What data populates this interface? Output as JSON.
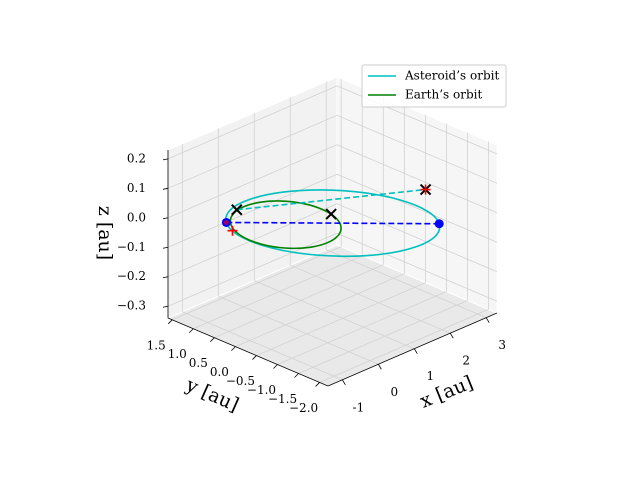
{
  "chart_data": {
    "type": "line3d",
    "xlabel": "x [au]",
    "ylabel": "y [au]",
    "zlabel": "z [au]",
    "xlim": [
      -1.4,
      3.3
    ],
    "ylim": [
      -2.2,
      1.6
    ],
    "zlim": [
      -0.34,
      0.23
    ],
    "xticks": [
      -1,
      0,
      1,
      2,
      3
    ],
    "yticks": [
      {
        "value": 1.5,
        "label": "1.5"
      },
      {
        "value": 1,
        "label": "1.0"
      },
      {
        "value": 0.5,
        "label": "0.5"
      },
      {
        "value": 0,
        "label": "0.0"
      },
      {
        "value": -0.5,
        "label": "−0.5"
      },
      {
        "value": -1,
        "label": "−1.0"
      },
      {
        "value": -1.5,
        "label": "−1.5"
      },
      {
        "value": -2,
        "label": "−2.0"
      }
    ],
    "zticks": [
      {
        "value": 0.2,
        "label": "0.2"
      },
      {
        "value": 0.1,
        "label": "0.1"
      },
      {
        "value": 0,
        "label": "0.0"
      },
      {
        "value": -0.1,
        "label": "−0.1"
      },
      {
        "value": -0.2,
        "label": "−0.2"
      },
      {
        "value": -0.3,
        "label": "−0.3"
      }
    ],
    "grid": true,
    "legend": "upper right",
    "series": [
      {
        "name": "Asteroid’s orbit",
        "color": "#00bfbf",
        "x": [
          2.147,
          2.394,
          2.382,
          2.115,
          1.632,
          1.007,
          0.336,
          -0.28,
          -0.747,
          -0.994,
          -0.982,
          -0.715,
          -0.232,
          0.393,
          1.064,
          1.68
        ],
        "y": [
          -1.812,
          -1.314,
          -0.695,
          -0.05,
          0.524,
          0.94,
          1.131,
          1.074,
          0.772,
          0.274,
          -0.345,
          -0.99,
          -1.564,
          -1.98,
          -2.171,
          -2.114
        ],
        "z": [
          0,
          0,
          0,
          0,
          0,
          0,
          0,
          0,
          0,
          0,
          0,
          0,
          0,
          0,
          0,
          0
        ]
      },
      {
        "name": "Earth’s orbit",
        "color": "#008000",
        "x": [
          1,
          0.924,
          0.707,
          0.383,
          0,
          -0.383,
          -0.707,
          -0.924,
          -1,
          -0.924,
          -0.707,
          -0.383,
          0,
          0.383,
          0.707,
          0.924
        ],
        "y": [
          0,
          0.383,
          0.707,
          0.924,
          1,
          0.924,
          0.707,
          0.383,
          0,
          -0.383,
          -0.707,
          -0.924,
          -1,
          -0.924,
          -0.707,
          -0.383
        ],
        "z": [
          0,
          0,
          0,
          0,
          0,
          0,
          0,
          0,
          0,
          0,
          0,
          0,
          0,
          0,
          0,
          0
        ]
      }
    ],
    "lines": [
      {
        "color": "#0000ff",
        "linestyle": "dashed",
        "x": [
          -0.747,
          2.147
        ],
        "y": [
          0.772,
          -1.812
        ],
        "z": [
          0,
          0
        ]
      },
      {
        "color": "#00bfbf",
        "linestyle": "dashed",
        "x": [
          -0.19,
          3.07
        ],
        "y": [
          1.0,
          -0.7
        ],
        "z": [
          0,
          0
        ]
      }
    ],
    "points": [
      {
        "x": 2.147,
        "y": -1.812,
        "z": 0,
        "color": "#0000ff",
        "marker": "o"
      },
      {
        "x": -0.747,
        "y": 0.772,
        "z": 0,
        "color": "#0000ff",
        "marker": "o"
      },
      {
        "x": -0.747,
        "y": 0.772,
        "z": 0,
        "color": "#ff0000",
        "marker": "."
      },
      {
        "x": 0.97,
        "y": -0.25,
        "z": 0,
        "color": "#000000",
        "marker": "x"
      },
      {
        "x": -0.19,
        "y": 1.0,
        "z": 0,
        "color": "#000000",
        "marker": "x"
      },
      {
        "x": 3.07,
        "y": -0.7,
        "z": 0,
        "color": "#000000",
        "marker": "x"
      },
      {
        "x": 3.07,
        "y": -0.7,
        "z": 0,
        "color": "#ff0000",
        "marker": "+"
      },
      {
        "x": -0.93,
        "y": 0.47,
        "z": 0,
        "color": "#ff0000",
        "marker": "+"
      }
    ]
  }
}
